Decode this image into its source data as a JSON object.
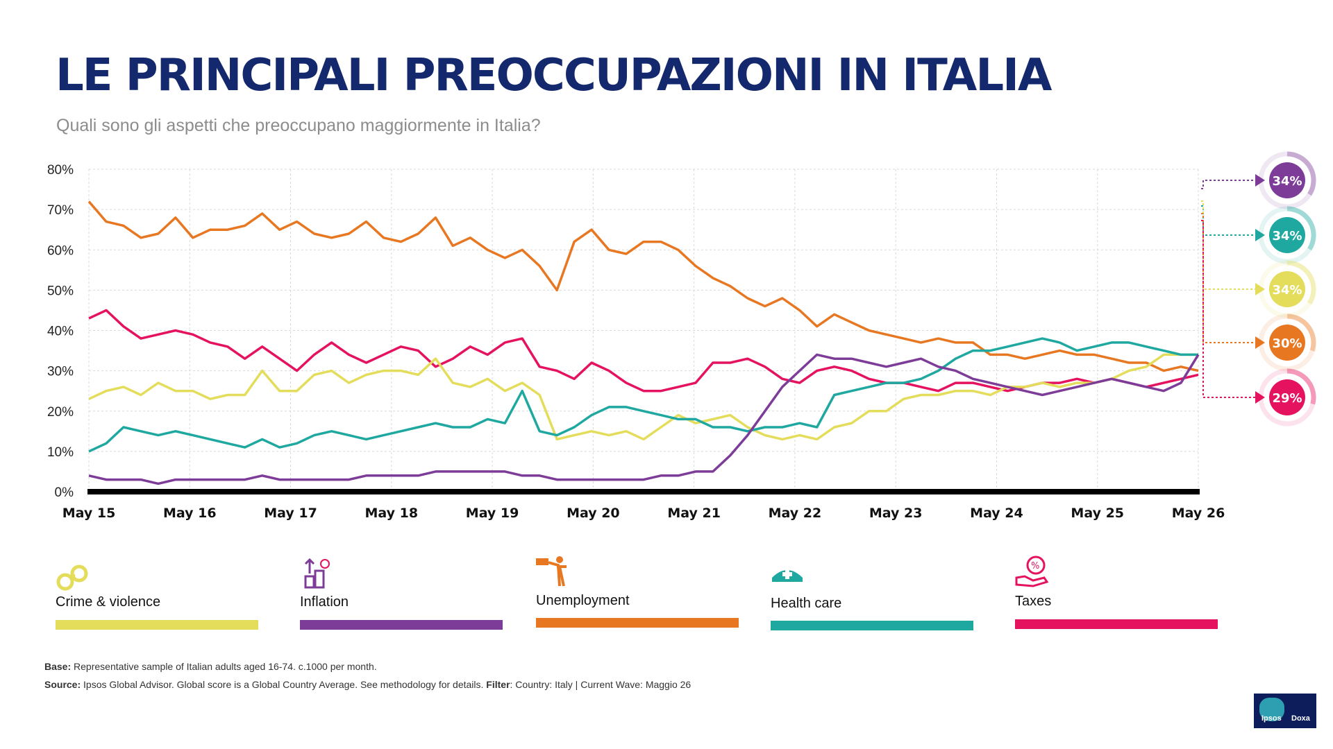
{
  "header": {
    "title": "LE PRINCIPALI PREOCCUPAZIONI IN ITALIA",
    "subtitle": "Quali sono gli aspetti che preoccupano maggiormente in Italia?"
  },
  "legend": [
    {
      "label": "Crime & violence",
      "color": "#e3dd5b",
      "icon": "handcuffs-icon"
    },
    {
      "label": "Inflation",
      "color": "#7d3c98",
      "icon": "rising-coins-icon"
    },
    {
      "label": "Unemployment",
      "color": "#e87722",
      "icon": "pointing-figure-icon"
    },
    {
      "label": "Health care",
      "color": "#1fa8a0",
      "icon": "nurse-cap-icon"
    },
    {
      "label": "Taxes",
      "color": "#e4125f",
      "icon": "tax-hand-icon"
    }
  ],
  "footnotes": {
    "base_label": "Base:",
    "base_text": " Representative sample of Italian adults aged 16-74. c.1000 per month.",
    "source_label": "Source:",
    "source_text": " Ipsos Global Advisor. Global score is a Global Country Average. See methodology for details.  ",
    "filter_label": "Filter",
    "filter_text": ": Country: Italy | Current Wave: Maggio 26"
  },
  "logo": {
    "left": "Ipsos",
    "right": "Doxa"
  },
  "chart_data": {
    "type": "line",
    "x_labels": [
      "May 15",
      "May 16",
      "May 17",
      "May 18",
      "May 19",
      "May 20",
      "May 21",
      "May 22",
      "May 23",
      "May 24",
      "May 25",
      "May 26"
    ],
    "y_ticks": [
      "0%",
      "10%",
      "20%",
      "30%",
      "40%",
      "50%",
      "60%",
      "70%",
      "80%"
    ],
    "ylim": [
      0,
      80
    ],
    "grid": true,
    "series": [
      {
        "name": "Unemployment",
        "color": "#e87722",
        "values": [
          72,
          67,
          66,
          63,
          64,
          68,
          63,
          65,
          65,
          66,
          69,
          65,
          67,
          64,
          63,
          64,
          67,
          63,
          62,
          64,
          68,
          61,
          63,
          60,
          58,
          60,
          56,
          50,
          62,
          65,
          60,
          59,
          62,
          62,
          60,
          56,
          53,
          51,
          48,
          46,
          48,
          45,
          41,
          44,
          42,
          40,
          39,
          38,
          37,
          38,
          37,
          37,
          34,
          34,
          33,
          34,
          35,
          34,
          34,
          33,
          32,
          32,
          30,
          31,
          30
        ]
      },
      {
        "name": "Taxes",
        "color": "#e4125f",
        "values": [
          43,
          45,
          41,
          38,
          39,
          40,
          39,
          37,
          36,
          33,
          36,
          33,
          30,
          34,
          37,
          34,
          32,
          34,
          36,
          35,
          31,
          33,
          36,
          34,
          37,
          38,
          31,
          30,
          28,
          32,
          30,
          27,
          25,
          25,
          26,
          27,
          32,
          32,
          33,
          31,
          28,
          27,
          30,
          31,
          30,
          28,
          27,
          27,
          26,
          25,
          27,
          27,
          26,
          25,
          26,
          27,
          27,
          28,
          27,
          28,
          27,
          26,
          27,
          28,
          29
        ]
      },
      {
        "name": "Crime & violence",
        "color": "#e3dd5b",
        "values": [
          23,
          25,
          26,
          24,
          27,
          25,
          25,
          23,
          24,
          24,
          30,
          25,
          25,
          29,
          30,
          27,
          29,
          30,
          30,
          29,
          33,
          27,
          26,
          28,
          25,
          27,
          24,
          13,
          14,
          15,
          14,
          15,
          13,
          16,
          19,
          17,
          18,
          19,
          16,
          14,
          13,
          14,
          13,
          16,
          17,
          20,
          20,
          23,
          24,
          24,
          25,
          25,
          24,
          26,
          26,
          27,
          26,
          27,
          27,
          28,
          30,
          31,
          34,
          34,
          34
        ]
      },
      {
        "name": "Health care",
        "color": "#1fa8a0",
        "values": [
          10,
          12,
          16,
          15,
          14,
          15,
          14,
          13,
          12,
          11,
          13,
          11,
          12,
          14,
          15,
          14,
          13,
          14,
          15,
          16,
          17,
          16,
          16,
          18,
          17,
          25,
          15,
          14,
          16,
          19,
          21,
          21,
          20,
          19,
          18,
          18,
          16,
          16,
          15,
          16,
          16,
          17,
          16,
          24,
          25,
          26,
          27,
          27,
          28,
          30,
          33,
          35,
          35,
          36,
          37,
          38,
          37,
          35,
          36,
          37,
          37,
          36,
          35,
          34,
          34
        ]
      },
      {
        "name": "Inflation",
        "color": "#7d3c98",
        "values": [
          4,
          3,
          3,
          3,
          2,
          3,
          3,
          3,
          3,
          3,
          4,
          3,
          3,
          3,
          3,
          3,
          4,
          4,
          4,
          4,
          5,
          5,
          5,
          5,
          5,
          4,
          4,
          3,
          3,
          3,
          3,
          3,
          3,
          4,
          4,
          5,
          5,
          9,
          14,
          20,
          26,
          30,
          34,
          33,
          33,
          32,
          31,
          32,
          33,
          31,
          30,
          28,
          27,
          26,
          25,
          24,
          25,
          26,
          27,
          28,
          27,
          26,
          25,
          27,
          34
        ]
      }
    ],
    "current_values": [
      {
        "name": "Inflation",
        "label": "34%",
        "color": "#7d3c98",
        "fraction": 0.34
      },
      {
        "name": "Health care",
        "label": "34%",
        "color": "#1fa8a0",
        "fraction": 0.34
      },
      {
        "name": "Crime & violence",
        "label": "34%",
        "color": "#e3dd5b",
        "fraction": 0.34
      },
      {
        "name": "Unemployment",
        "label": "30%",
        "color": "#e87722",
        "fraction": 0.3
      },
      {
        "name": "Taxes",
        "label": "29%",
        "color": "#e4125f",
        "fraction": 0.29
      }
    ]
  }
}
